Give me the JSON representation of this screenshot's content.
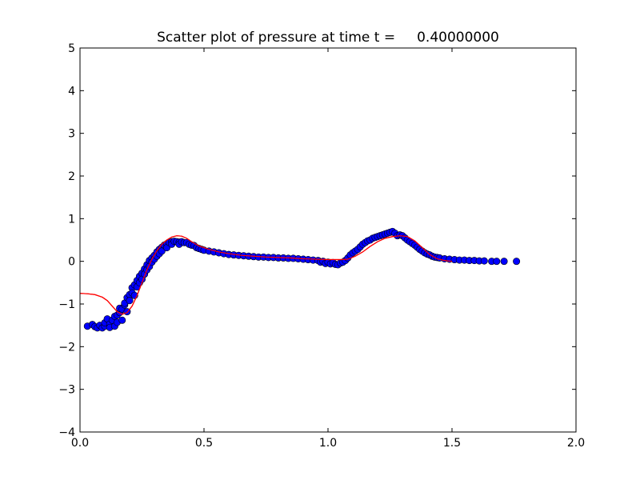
{
  "chart_data": {
    "type": "scatter",
    "title": "Scatter plot of pressure at time t =     0.40000000",
    "xlabel": "",
    "ylabel": "",
    "xlim": [
      0.0,
      2.0
    ],
    "ylim": [
      -4,
      5
    ],
    "xticks": [
      0.0,
      0.5,
      1.0,
      1.5,
      2.0
    ],
    "xtick_labels": [
      "0.0",
      "0.5",
      "1.0",
      "1.5",
      "2.0"
    ],
    "yticks": [
      -4,
      -3,
      -2,
      -1,
      0,
      1,
      2,
      3,
      4,
      5
    ],
    "ytick_labels": [
      "−4",
      "−3",
      "−2",
      "−1",
      "0",
      "1",
      "2",
      "3",
      "4",
      "5"
    ],
    "grid": false,
    "series": [
      {
        "kind": "scatter",
        "color": "#0000ff",
        "edge_color": "#000000",
        "points": [
          [
            0.03,
            -1.52
          ],
          [
            0.05,
            -1.48
          ],
          [
            0.06,
            -1.53
          ],
          [
            0.07,
            -1.56
          ],
          [
            0.08,
            -1.5
          ],
          [
            0.09,
            -1.56
          ],
          [
            0.1,
            -1.52
          ],
          [
            0.1,
            -1.44
          ],
          [
            0.11,
            -1.35
          ],
          [
            0.12,
            -1.47
          ],
          [
            0.12,
            -1.55
          ],
          [
            0.13,
            -1.38
          ],
          [
            0.14,
            -1.29
          ],
          [
            0.14,
            -1.52
          ],
          [
            0.15,
            -1.43
          ],
          [
            0.15,
            -1.26
          ],
          [
            0.16,
            -1.2
          ],
          [
            0.16,
            -1.1
          ],
          [
            0.17,
            -1.38
          ],
          [
            0.17,
            -1.12
          ],
          [
            0.18,
            -1.02
          ],
          [
            0.18,
            -0.98
          ],
          [
            0.19,
            -0.85
          ],
          [
            0.19,
            -1.18
          ],
          [
            0.2,
            -0.78
          ],
          [
            0.2,
            -0.92
          ],
          [
            0.21,
            -0.62
          ],
          [
            0.21,
            -0.74
          ],
          [
            0.22,
            -0.55
          ],
          [
            0.22,
            -0.8
          ],
          [
            0.23,
            -0.45
          ],
          [
            0.23,
            -0.6
          ],
          [
            0.24,
            -0.35
          ],
          [
            0.24,
            -0.5
          ],
          [
            0.25,
            -0.28
          ],
          [
            0.25,
            -0.42
          ],
          [
            0.26,
            -0.18
          ],
          [
            0.26,
            -0.3
          ],
          [
            0.27,
            -0.08
          ],
          [
            0.27,
            -0.2
          ],
          [
            0.28,
            0.02
          ],
          [
            0.28,
            -0.12
          ],
          [
            0.29,
            0.08
          ],
          [
            0.29,
            -0.02
          ],
          [
            0.3,
            0.14
          ],
          [
            0.3,
            0.05
          ],
          [
            0.31,
            0.22
          ],
          [
            0.31,
            0.12
          ],
          [
            0.32,
            0.28
          ],
          [
            0.32,
            0.18
          ],
          [
            0.33,
            0.33
          ],
          [
            0.33,
            0.24
          ],
          [
            0.34,
            0.38
          ],
          [
            0.35,
            0.41
          ],
          [
            0.35,
            0.32
          ],
          [
            0.36,
            0.44
          ],
          [
            0.37,
            0.46
          ],
          [
            0.37,
            0.4
          ],
          [
            0.38,
            0.47
          ],
          [
            0.39,
            0.46
          ],
          [
            0.4,
            0.45
          ],
          [
            0.4,
            0.4
          ],
          [
            0.41,
            0.46
          ],
          [
            0.42,
            0.44
          ],
          [
            0.43,
            0.44
          ],
          [
            0.44,
            0.4
          ],
          [
            0.45,
            0.38
          ],
          [
            0.46,
            0.37
          ],
          [
            0.47,
            0.32
          ],
          [
            0.48,
            0.3
          ],
          [
            0.49,
            0.28
          ],
          [
            0.5,
            0.26
          ],
          [
            0.52,
            0.24
          ],
          [
            0.54,
            0.22
          ],
          [
            0.56,
            0.2
          ],
          [
            0.58,
            0.18
          ],
          [
            0.6,
            0.16
          ],
          [
            0.62,
            0.15
          ],
          [
            0.64,
            0.14
          ],
          [
            0.66,
            0.13
          ],
          [
            0.68,
            0.12
          ],
          [
            0.7,
            0.11
          ],
          [
            0.72,
            0.1
          ],
          [
            0.74,
            0.1
          ],
          [
            0.76,
            0.09
          ],
          [
            0.78,
            0.09
          ],
          [
            0.8,
            0.08
          ],
          [
            0.82,
            0.08
          ],
          [
            0.84,
            0.07
          ],
          [
            0.86,
            0.07
          ],
          [
            0.88,
            0.06
          ],
          [
            0.9,
            0.05
          ],
          [
            0.92,
            0.04
          ],
          [
            0.94,
            0.03
          ],
          [
            0.96,
            0.02
          ],
          [
            0.97,
            -0.02
          ],
          [
            0.98,
            0.0
          ],
          [
            0.99,
            -0.05
          ],
          [
            1.0,
            -0.02
          ],
          [
            1.01,
            -0.06
          ],
          [
            1.02,
            -0.03
          ],
          [
            1.03,
            -0.07
          ],
          [
            1.04,
            -0.08
          ],
          [
            1.05,
            -0.04
          ],
          [
            1.06,
            -0.02
          ],
          [
            1.07,
            0.02
          ],
          [
            1.08,
            0.08
          ],
          [
            1.09,
            0.15
          ],
          [
            1.1,
            0.2
          ],
          [
            1.11,
            0.24
          ],
          [
            1.12,
            0.28
          ],
          [
            1.13,
            0.34
          ],
          [
            1.14,
            0.4
          ],
          [
            1.15,
            0.44
          ],
          [
            1.16,
            0.48
          ],
          [
            1.17,
            0.5
          ],
          [
            1.18,
            0.54
          ],
          [
            1.19,
            0.56
          ],
          [
            1.2,
            0.58
          ],
          [
            1.21,
            0.6
          ],
          [
            1.22,
            0.62
          ],
          [
            1.23,
            0.64
          ],
          [
            1.24,
            0.66
          ],
          [
            1.25,
            0.68
          ],
          [
            1.26,
            0.7
          ],
          [
            1.27,
            0.66
          ],
          [
            1.28,
            0.6
          ],
          [
            1.29,
            0.62
          ],
          [
            1.3,
            0.6
          ],
          [
            1.31,
            0.55
          ],
          [
            1.32,
            0.5
          ],
          [
            1.33,
            0.46
          ],
          [
            1.34,
            0.42
          ],
          [
            1.35,
            0.38
          ],
          [
            1.36,
            0.33
          ],
          [
            1.37,
            0.28
          ],
          [
            1.38,
            0.24
          ],
          [
            1.39,
            0.2
          ],
          [
            1.4,
            0.17
          ],
          [
            1.41,
            0.15
          ],
          [
            1.42,
            0.12
          ],
          [
            1.43,
            0.1
          ],
          [
            1.44,
            0.09
          ],
          [
            1.45,
            0.08
          ],
          [
            1.47,
            0.06
          ],
          [
            1.49,
            0.05
          ],
          [
            1.51,
            0.04
          ],
          [
            1.53,
            0.03
          ],
          [
            1.55,
            0.03
          ],
          [
            1.57,
            0.02
          ],
          [
            1.59,
            0.02
          ],
          [
            1.61,
            0.01
          ],
          [
            1.63,
            0.01
          ],
          [
            1.66,
            0.0
          ],
          [
            1.68,
            0.0
          ],
          [
            1.71,
            0.0
          ],
          [
            1.76,
            0.0
          ]
        ]
      },
      {
        "kind": "line",
        "color": "#ff0000",
        "points": [
          [
            0.0,
            -0.75
          ],
          [
            0.03,
            -0.76
          ],
          [
            0.06,
            -0.78
          ],
          [
            0.09,
            -0.84
          ],
          [
            0.11,
            -0.92
          ],
          [
            0.13,
            -1.05
          ],
          [
            0.15,
            -1.18
          ],
          [
            0.17,
            -1.24
          ],
          [
            0.19,
            -1.2
          ],
          [
            0.21,
            -1.05
          ],
          [
            0.23,
            -0.8
          ],
          [
            0.25,
            -0.5
          ],
          [
            0.27,
            -0.2
          ],
          [
            0.29,
            0.05
          ],
          [
            0.31,
            0.25
          ],
          [
            0.33,
            0.4
          ],
          [
            0.35,
            0.5
          ],
          [
            0.37,
            0.57
          ],
          [
            0.39,
            0.6
          ],
          [
            0.41,
            0.59
          ],
          [
            0.43,
            0.54
          ],
          [
            0.45,
            0.46
          ],
          [
            0.48,
            0.36
          ],
          [
            0.52,
            0.28
          ],
          [
            0.56,
            0.22
          ],
          [
            0.6,
            0.18
          ],
          [
            0.65,
            0.14
          ],
          [
            0.7,
            0.12
          ],
          [
            0.75,
            0.1
          ],
          [
            0.8,
            0.09
          ],
          [
            0.85,
            0.08
          ],
          [
            0.9,
            0.06
          ],
          [
            0.95,
            0.05
          ],
          [
            1.0,
            0.04
          ],
          [
            1.05,
            0.04
          ],
          [
            1.08,
            0.05
          ],
          [
            1.11,
            0.12
          ],
          [
            1.14,
            0.22
          ],
          [
            1.17,
            0.35
          ],
          [
            1.2,
            0.46
          ],
          [
            1.23,
            0.54
          ],
          [
            1.26,
            0.58
          ],
          [
            1.29,
            0.6
          ],
          [
            1.32,
            0.58
          ],
          [
            1.35,
            0.48
          ],
          [
            1.38,
            0.32
          ],
          [
            1.41,
            0.16
          ],
          [
            1.44,
            0.06
          ],
          [
            1.47,
            0.02
          ],
          [
            1.5,
            0.0
          ]
        ]
      }
    ]
  }
}
